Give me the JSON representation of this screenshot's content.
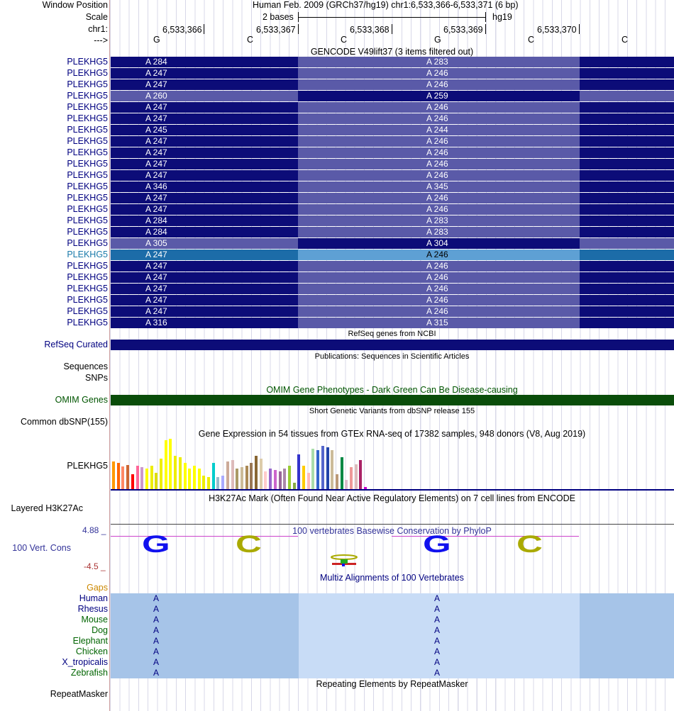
{
  "header": {
    "window_position_label": "Window Position",
    "scale_label": "Scale",
    "chrom_label": "chr1:",
    "arrow_label": "--->",
    "title": "Human Feb. 2009 (GRCh37/hg19)   chr1:6,533,366-6,533,371 (6 bp)",
    "scale_text": "2 bases",
    "assembly": "hg19",
    "ruler": [
      "6,533,366",
      "6,533,367",
      "6,533,368",
      "6,533,369",
      "6,533,370"
    ],
    "bases": [
      "G",
      "C",
      "C",
      "G",
      "C",
      "C"
    ]
  },
  "gencode": {
    "title": "GENCODE V49lift37 (3 items filtered out)",
    "label": "PLEKHG5",
    "rows": [
      {
        "left": "A 284",
        "right": "A 283",
        "style": "a"
      },
      {
        "left": "A 247",
        "right": "A 246",
        "style": "a"
      },
      {
        "left": "A 247",
        "right": "A 246",
        "style": "a"
      },
      {
        "left": "A 260",
        "right": "A 259",
        "style": "b"
      },
      {
        "left": "A 247",
        "right": "A 246",
        "style": "a"
      },
      {
        "left": "A 247",
        "right": "A 246",
        "style": "a"
      },
      {
        "left": "A 245",
        "right": "A 244",
        "style": "a"
      },
      {
        "left": "A 247",
        "right": "A 246",
        "style": "a"
      },
      {
        "left": "A 247",
        "right": "A 246",
        "style": "a"
      },
      {
        "left": "A 247",
        "right": "A 246",
        "style": "a"
      },
      {
        "left": "A 247",
        "right": "A 246",
        "style": "a"
      },
      {
        "left": "A 346",
        "right": "A 345",
        "style": "a"
      },
      {
        "left": "A 247",
        "right": "A 246",
        "style": "a"
      },
      {
        "left": "A 247",
        "right": "A 246",
        "style": "a"
      },
      {
        "left": "A 284",
        "right": "A 283",
        "style": "a"
      },
      {
        "left": "A 284",
        "right": "A 283",
        "style": "a"
      },
      {
        "left": "A 305",
        "right": "A 304",
        "style": "b"
      },
      {
        "left": "A 247",
        "right": "A 246",
        "style": "h"
      },
      {
        "left": "A 247",
        "right": "A 246",
        "style": "a"
      },
      {
        "left": "A 247",
        "right": "A 246",
        "style": "a"
      },
      {
        "left": "A 247",
        "right": "A 246",
        "style": "a"
      },
      {
        "left": "A 247",
        "right": "A 246",
        "style": "a"
      },
      {
        "left": "A 247",
        "right": "A 246",
        "style": "a"
      },
      {
        "left": "A 316",
        "right": "A 315",
        "style": "a"
      }
    ]
  },
  "refseq": {
    "title": "RefSeq genes from NCBI",
    "label": "RefSeq Curated"
  },
  "publications": {
    "title": "Publications: Sequences in Scientific Articles",
    "label1": "Sequences",
    "label2": "SNPs"
  },
  "omim": {
    "title": "OMIM Gene Phenotypes - Dark Green Can Be Disease-causing",
    "label": "OMIM Genes"
  },
  "dbsnp": {
    "title": "Short Genetic Variants from dbSNP release 155",
    "label": "Common dbSNP(155)"
  },
  "gtex": {
    "title": "Gene Expression in 54 tissues from GTEx RNA-seq of 17382 samples, 948 donors (V8, Aug 2019)",
    "label": "PLEKHG5",
    "values": [
      40,
      38,
      33,
      35,
      22,
      34,
      32,
      30,
      34,
      24,
      44,
      70,
      72,
      48,
      46,
      38,
      30,
      34,
      30,
      20,
      18,
      38,
      18,
      20,
      40,
      42,
      30,
      32,
      34,
      38,
      48,
      44,
      26,
      30,
      28,
      26,
      30,
      34,
      10,
      50,
      34,
      24,
      58,
      56,
      62,
      60,
      56,
      22,
      46,
      14,
      32,
      36,
      42,
      4
    ],
    "colors": [
      "#ff9900",
      "#ff6600",
      "#ff8866",
      "#cc6633",
      "#ff0000",
      "#ff6699",
      "#cc99cc",
      "#ffff00",
      "#eeee00",
      "#dddd00",
      "#eeee00",
      "#ffff00",
      "#ffff00",
      "#eeee00",
      "#eeee00",
      "#ffff00",
      "#ffff00",
      "#ffff00",
      "#ffff00",
      "#eeee00",
      "#eeee00",
      "#00cccc",
      "#99bbcc",
      "#aaaaff",
      "#ccaa99",
      "#ddbbbb",
      "#aa9966",
      "#ccbb99",
      "#aa8855",
      "#997755",
      "#886633",
      "#ddccaa",
      "#ffcccc",
      "#9966cc",
      "#cc66cc",
      "#996699",
      "#aa88aa",
      "#99cc33",
      "#88aa44",
      "#3333cc",
      "#ffcc00",
      "#ffbbbb",
      "#aaddaa",
      "#3366cc",
      "#5566cc",
      "#2244aa",
      "#ccbb99",
      "#bb9977",
      "#008844",
      "#ddbbcc",
      "#ee9999",
      "#ddbbbb",
      "#aa2266",
      "#cc00cc"
    ]
  },
  "h3k27ac": {
    "title": "H3K27Ac Mark (Often Found Near Active Regulatory Elements) on 7 cell lines from ENCODE",
    "label": "Layered H3K27Ac"
  },
  "cons": {
    "title": "100 vertebrates Basewise Conservation by PhyloP",
    "label": "100 Vert. Cons",
    "max": "4.88 _",
    "min": "-4.5 _",
    "logo": [
      "G",
      "C",
      "",
      "G",
      "C"
    ]
  },
  "multiz": {
    "title": "Multiz Alignments of 100 Vertebrates",
    "gaps_label": "Gaps",
    "species": [
      {
        "name": "Human",
        "color": "#000080",
        "left": "A",
        "right": "A"
      },
      {
        "name": "Rhesus",
        "color": "#000080",
        "left": "A",
        "right": "A"
      },
      {
        "name": "Mouse",
        "color": "#006400",
        "left": "A",
        "right": "A"
      },
      {
        "name": "Dog",
        "color": "#006400",
        "left": "A",
        "right": "A"
      },
      {
        "name": "Elephant",
        "color": "#006400",
        "left": "A",
        "right": "A"
      },
      {
        "name": "Chicken",
        "color": "#006400",
        "left": "A",
        "right": "A"
      },
      {
        "name": "X_tropicalis",
        "color": "#000080",
        "left": "A",
        "right": "A"
      },
      {
        "name": "Zebrafish",
        "color": "#006400",
        "left": "A",
        "right": "A"
      }
    ]
  },
  "repeatmasker": {
    "title": "Repeating Elements by RepeatMasker",
    "label": "RepeatMasker"
  }
}
